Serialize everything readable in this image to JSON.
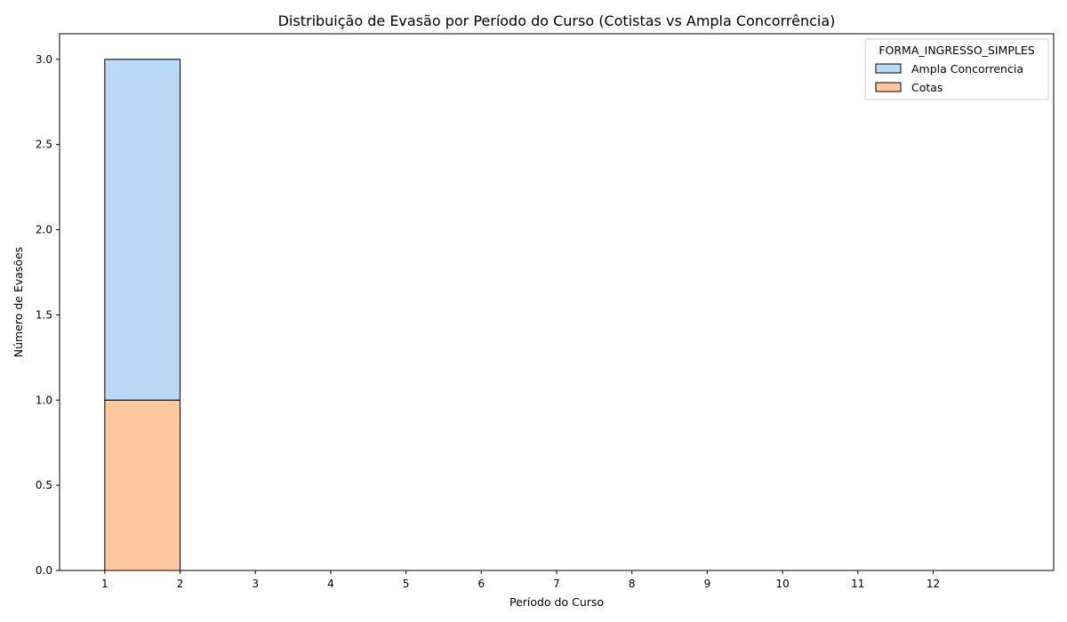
{
  "chart_data": {
    "type": "bar",
    "title": "Distribuição de Evasão por Período do Curso (Cotistas vs Ampla Concorrência)",
    "xlabel": "Período do Curso",
    "ylabel": "Número de Evasões",
    "xlim": [
      0.4,
      13.6
    ],
    "ylim": [
      0,
      3.15
    ],
    "x_ticks": [
      "1",
      "2",
      "3",
      "4",
      "5",
      "6",
      "7",
      "8",
      "9",
      "10",
      "11",
      "12"
    ],
    "y_ticks": [
      "0.0",
      "0.5",
      "1.0",
      "1.5",
      "2.0",
      "2.5",
      "3.0"
    ],
    "bins": [
      [
        1,
        2
      ],
      [
        2,
        3
      ],
      [
        3,
        4
      ],
      [
        4,
        5
      ],
      [
        5,
        6
      ],
      [
        6,
        7
      ],
      [
        7,
        8
      ],
      [
        8,
        9
      ],
      [
        9,
        10
      ],
      [
        10,
        11
      ],
      [
        11,
        12
      ],
      [
        12,
        13
      ]
    ],
    "stacked": true,
    "series": [
      {
        "name": "Cotas",
        "color": "#ffc6a0",
        "values": [
          1,
          0,
          0,
          0,
          0,
          0,
          0,
          0,
          0,
          0,
          0,
          0
        ]
      },
      {
        "name": "Ampla Concorrencia",
        "color": "#b8d8f6",
        "values": [
          2,
          0,
          0,
          0,
          0,
          0,
          0,
          0,
          0,
          0,
          0,
          0
        ]
      }
    ],
    "legend": {
      "title": "FORMA_INGRESSO_SIMPLES",
      "position": "top-right",
      "entries": [
        "Ampla Concorrencia",
        "Cotas"
      ]
    },
    "grid": false
  }
}
